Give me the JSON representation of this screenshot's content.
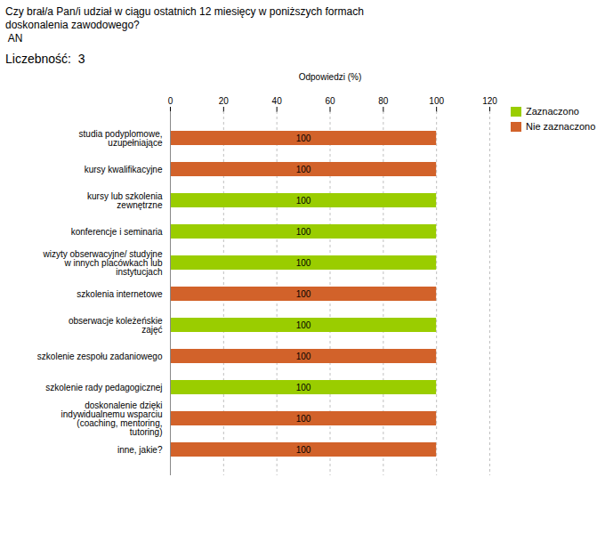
{
  "chart_data": {
    "type": "bar",
    "orientation": "horizontal",
    "stacked": true,
    "title": "Czy brał/a Pan/i udział w ciągu ostatnich 12 miesięcy w poniższych formach\ndoskonalenia zawodowego?\n AN",
    "subtitle": "Liczebność:  3",
    "xlabel": "Odpowiedzi (%)",
    "categories": [
      "studia podyplomowe,\nuzupełniające",
      "kursy kwalifikacyjne",
      "kursy lub szkolenia\nzewnętrzne",
      "konferencje i seminaria",
      "wizyty obserwacyjne/ studyjne\nw innych placówkach lub\ninstytucjach",
      "szkolenia internetowe",
      "obserwacje koleżeńskie\nzajęć",
      "szkolenie zespołu zadaniowego",
      "szkolenie rady pedagogicznej",
      "doskonalenie dzięki\nindywidualnemu wsparciu\n(coaching, mentoring,\ntutoring)",
      "inne, jakie?"
    ],
    "series": [
      {
        "name": "Zaznaczono",
        "color": "#9acd00",
        "values": [
          null,
          null,
          100,
          100,
          100,
          null,
          100,
          null,
          100,
          null,
          null
        ]
      },
      {
        "name": "Nie zaznaczono",
        "color": "#d2622a",
        "values": [
          100,
          100,
          null,
          null,
          null,
          100,
          null,
          100,
          null,
          100,
          100
        ]
      }
    ],
    "xlim": [
      0,
      120
    ],
    "xticks": [
      0,
      20,
      40,
      60,
      80,
      100,
      120
    ],
    "grid": true,
    "legend": "right",
    "data_labels": true
  }
}
